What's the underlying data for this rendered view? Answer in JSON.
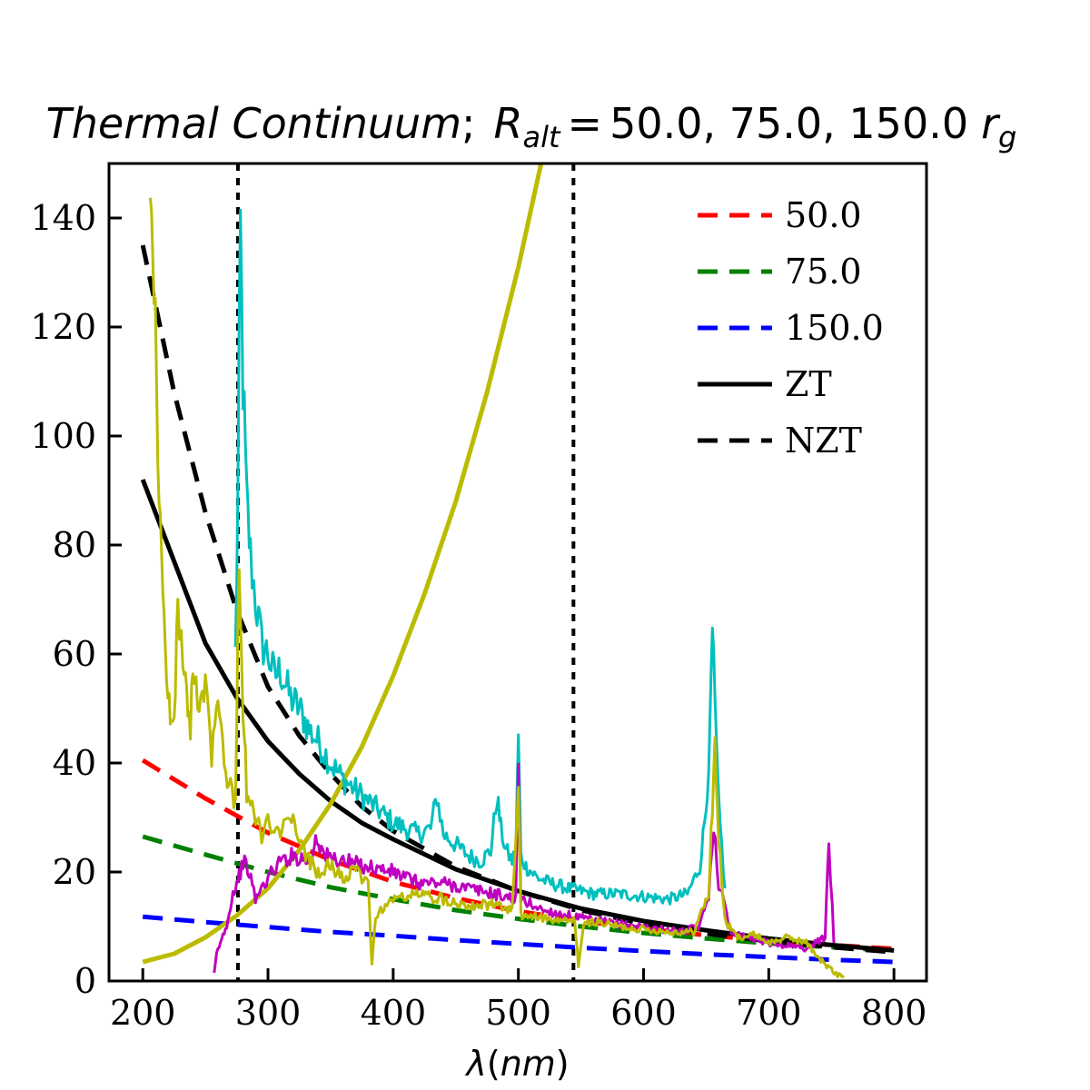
{
  "chart_data": {
    "type": "line",
    "title": {
      "prefix": "Thermal Continuum",
      "separator": ";",
      "symbol": "R",
      "subscript": "alt",
      "equals": "=",
      "values_text": "50.0,  75.0,  150.0",
      "unit_symbol": "r",
      "unit_subscript": "g"
    },
    "xlabel": {
      "pre": "λ",
      "paren_open": "(",
      "unit": "nm",
      "paren_close": ")"
    },
    "ylabel": "",
    "xlim": [
      173,
      826
    ],
    "ylim": [
      0,
      150
    ],
    "x_ticks": [
      200,
      300,
      400,
      500,
      600,
      700,
      800
    ],
    "x_tick_labels": [
      "200",
      "300",
      "400",
      "500",
      "600",
      "700",
      "800"
    ],
    "y_ticks": [
      0,
      20,
      40,
      60,
      80,
      100,
      120,
      140
    ],
    "y_tick_labels": [
      "0",
      "20",
      "40",
      "60",
      "80",
      "100",
      "120",
      "140"
    ],
    "grid": false,
    "legend_position": "top-right",
    "legend": [
      {
        "label": "50.0",
        "color": "#ff0000",
        "style": "dashed"
      },
      {
        "label": "75.0",
        "color": "#008000",
        "style": "dashed"
      },
      {
        "label": "150.0",
        "color": "#0000ff",
        "style": "dashed"
      },
      {
        "label": "ZT",
        "color": "#000000",
        "style": "solid"
      },
      {
        "label": "NZT",
        "color": "#000000",
        "style": "dashed"
      }
    ],
    "vlines": [
      {
        "x": 276,
        "color": "#000000",
        "style": "dotted"
      },
      {
        "x": 544,
        "color": "#000000",
        "style": "dotted"
      }
    ],
    "series": [
      {
        "name": "50.0",
        "color": "#ff0000",
        "style": "dashed",
        "width": 5,
        "x": [
          200,
          250,
          300,
          350,
          400,
          450,
          500,
          550,
          600,
          650,
          700,
          750,
          800
        ],
        "y": [
          40.5,
          33.5,
          27.2,
          22.2,
          18.2,
          15.2,
          12.8,
          11.0,
          9.6,
          8.4,
          7.4,
          6.6,
          5.9
        ]
      },
      {
        "name": "75.0",
        "color": "#008000",
        "style": "dashed",
        "width": 5,
        "x": [
          200,
          250,
          300,
          350,
          400,
          450,
          500,
          550,
          600,
          650,
          700,
          750,
          800
        ],
        "y": [
          26.5,
          23.2,
          20.0,
          17.2,
          15.0,
          13.0,
          11.4,
          10.0,
          8.8,
          7.8,
          6.9,
          6.2,
          5.6
        ]
      },
      {
        "name": "150.0",
        "color": "#0000ff",
        "style": "dashed",
        "width": 5,
        "x": [
          200,
          250,
          300,
          350,
          400,
          450,
          500,
          550,
          600,
          650,
          700,
          750,
          800
        ],
        "y": [
          11.8,
          10.8,
          9.9,
          9.0,
          8.3,
          7.5,
          6.8,
          6.1,
          5.5,
          4.9,
          4.4,
          3.9,
          3.5
        ]
      },
      {
        "name": "ZT",
        "color": "#000000",
        "style": "solid",
        "width": 5,
        "x": [
          200,
          225,
          250,
          275,
          300,
          325,
          350,
          375,
          400,
          450,
          500,
          550,
          600,
          650,
          700,
          750,
          800
        ],
        "y": [
          92.0,
          77.0,
          62.0,
          52.0,
          44.0,
          38.0,
          33.0,
          29.0,
          26.0,
          20.5,
          16.5,
          13.3,
          11.0,
          9.3,
          7.8,
          6.6,
          5.6
        ]
      },
      {
        "name": "NZT",
        "color": "#000000",
        "style": "dashed",
        "width": 5,
        "x": [
          200,
          225,
          250,
          275,
          300,
          325,
          350,
          375,
          400,
          450,
          500,
          550,
          600,
          650,
          700,
          750,
          800
        ],
        "y": [
          135.0,
          108.0,
          86.0,
          68.0,
          54.0,
          45.0,
          38.0,
          32.0,
          27.5,
          21.0,
          16.5,
          13.0,
          10.5,
          8.7,
          7.3,
          6.2,
          5.3
        ]
      },
      {
        "name": "",
        "color": "#bbbb00",
        "style": "solid",
        "width": 5,
        "x": [
          200,
          225,
          250,
          275,
          300,
          325,
          350,
          375,
          400,
          425,
          450,
          475,
          500,
          520
        ],
        "y": [
          3.5,
          5.0,
          8.0,
          12.0,
          17.0,
          24.0,
          32.5,
          43.0,
          56.0,
          71.0,
          88.0,
          108.0,
          131.0,
          152.0
        ]
      }
    ],
    "spectra": [
      {
        "color": "#00bfbf",
        "width": 3,
        "x": [
          274,
          276,
          278,
          280,
          283,
          286,
          290,
          295,
          300,
          305,
          310,
          318,
          325,
          333,
          340,
          350,
          360,
          370,
          380,
          390,
          400,
          410,
          420,
          430,
          435,
          440,
          450,
          460,
          470,
          478,
          483,
          486,
          490,
          495,
          498,
          500,
          502,
          506,
          515,
          525,
          540,
          560,
          580,
          600,
          620,
          635,
          645,
          650,
          653,
          655,
          657,
          660,
          665
        ],
        "y": [
          60,
          90,
          138,
          110,
          88,
          78,
          70,
          62,
          60,
          56,
          57,
          52,
          50,
          46,
          44,
          40,
          37,
          35,
          33,
          31,
          29,
          28,
          27,
          28,
          34,
          27,
          25,
          23,
          22,
          24,
          34,
          28,
          24,
          22,
          24,
          45,
          23,
          21,
          19,
          18,
          17,
          16,
          16,
          15.5,
          15,
          16,
          21,
          32,
          45,
          64,
          50,
          32,
          17
        ]
      },
      {
        "color": "#bf00bf",
        "width": 3,
        "x": [
          257,
          259,
          262,
          265,
          268,
          270,
          272,
          275,
          278,
          280,
          285,
          290,
          300,
          310,
          320,
          335,
          338,
          345,
          360,
          380,
          400,
          420,
          440,
          460,
          480,
          498,
          500,
          502,
          520,
          550,
          580,
          600,
          630,
          645,
          652,
          656,
          660,
          670,
          700,
          730,
          745,
          748,
          752
        ],
        "y": [
          1,
          5,
          7,
          9,
          11,
          14,
          16,
          18,
          20,
          22,
          20,
          15,
          19,
          22,
          23,
          22,
          27,
          23,
          22,
          21,
          20,
          18,
          18,
          17,
          16,
          15,
          38,
          15,
          13,
          11.5,
          10.5,
          10,
          9,
          10,
          16,
          29,
          18,
          9,
          7,
          6,
          8,
          26,
          7
        ]
      },
      {
        "color": "#bbbb00",
        "width": 3,
        "x": [
          206,
          208,
          210,
          212,
          214,
          216,
          218,
          220,
          222,
          225,
          228,
          232,
          235,
          238,
          240,
          245,
          250,
          255,
          260,
          265,
          270,
          274,
          277,
          280,
          283,
          286,
          290,
          295,
          300,
          305,
          310,
          320,
          330,
          340,
          350,
          360,
          370,
          380,
          383,
          386,
          390,
          400,
          420,
          440,
          460,
          480,
          495,
          500,
          502,
          510,
          530,
          545,
          548,
          552,
          560,
          580,
          600,
          620,
          640,
          652,
          655,
          657,
          660,
          665,
          675,
          690,
          700,
          715,
          730,
          745,
          755,
          760
        ],
        "y": [
          150,
          140,
          120,
          98,
          82,
          70,
          60,
          55,
          48,
          46,
          70,
          58,
          52,
          45,
          60,
          50,
          56,
          42,
          55,
          40,
          35,
          33,
          80,
          50,
          35,
          32,
          30,
          27,
          29,
          26,
          28,
          29,
          23,
          20,
          21,
          19,
          20,
          18,
          3,
          12,
          13,
          15,
          16,
          15,
          14,
          14,
          13,
          35,
          12,
          12,
          11,
          11,
          3,
          10,
          11,
          10,
          9.5,
          9,
          9,
          16,
          32,
          44,
          26,
          11,
          8,
          8.5,
          7,
          8,
          7,
          3,
          1,
          1
        ]
      }
    ]
  }
}
